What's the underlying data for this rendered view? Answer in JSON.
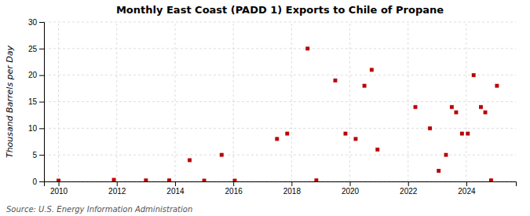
{
  "chart_data": {
    "type": "scatter",
    "title": "Monthly East Coast (PADD 1) Exports to Chile of Propane",
    "y_label": "Thousand Barrels per Day",
    "annotations": [
      "Source: U.S. Energy Information Administration"
    ],
    "color": "#bb0000",
    "marker": "square",
    "grid": true,
    "xlim": [
      2009.5,
      2025.7
    ],
    "ylim": [
      0,
      30
    ],
    "xticks": [
      2010,
      2012,
      2014,
      2016,
      2018,
      2020,
      2022,
      2024
    ],
    "yticks": [
      0,
      5,
      10,
      15,
      20,
      25,
      30
    ],
    "x": [
      2010.0,
      2011.9,
      2013.0,
      2013.8,
      2014.5,
      2015.0,
      2015.6,
      2016.05,
      2017.5,
      2017.85,
      2018.55,
      2018.85,
      2019.5,
      2019.85,
      2020.2,
      2020.5,
      2020.75,
      2020.95,
      2022.25,
      2022.75,
      2023.05,
      2023.3,
      2023.5,
      2023.65,
      2023.85,
      2024.05,
      2024.25,
      2024.5,
      2024.65,
      2024.85,
      2025.05
    ],
    "values": [
      0.15,
      0.3,
      0.2,
      0.2,
      4.0,
      0.15,
      5.0,
      0.15,
      8.0,
      9.0,
      25.0,
      0.2,
      19.0,
      9.0,
      8.0,
      18.0,
      21.0,
      6.0,
      14.0,
      10.0,
      2.0,
      5.0,
      14.0,
      13.0,
      9.0,
      9.0,
      20.0,
      14.0,
      13.0,
      0.2,
      18.0
    ]
  }
}
